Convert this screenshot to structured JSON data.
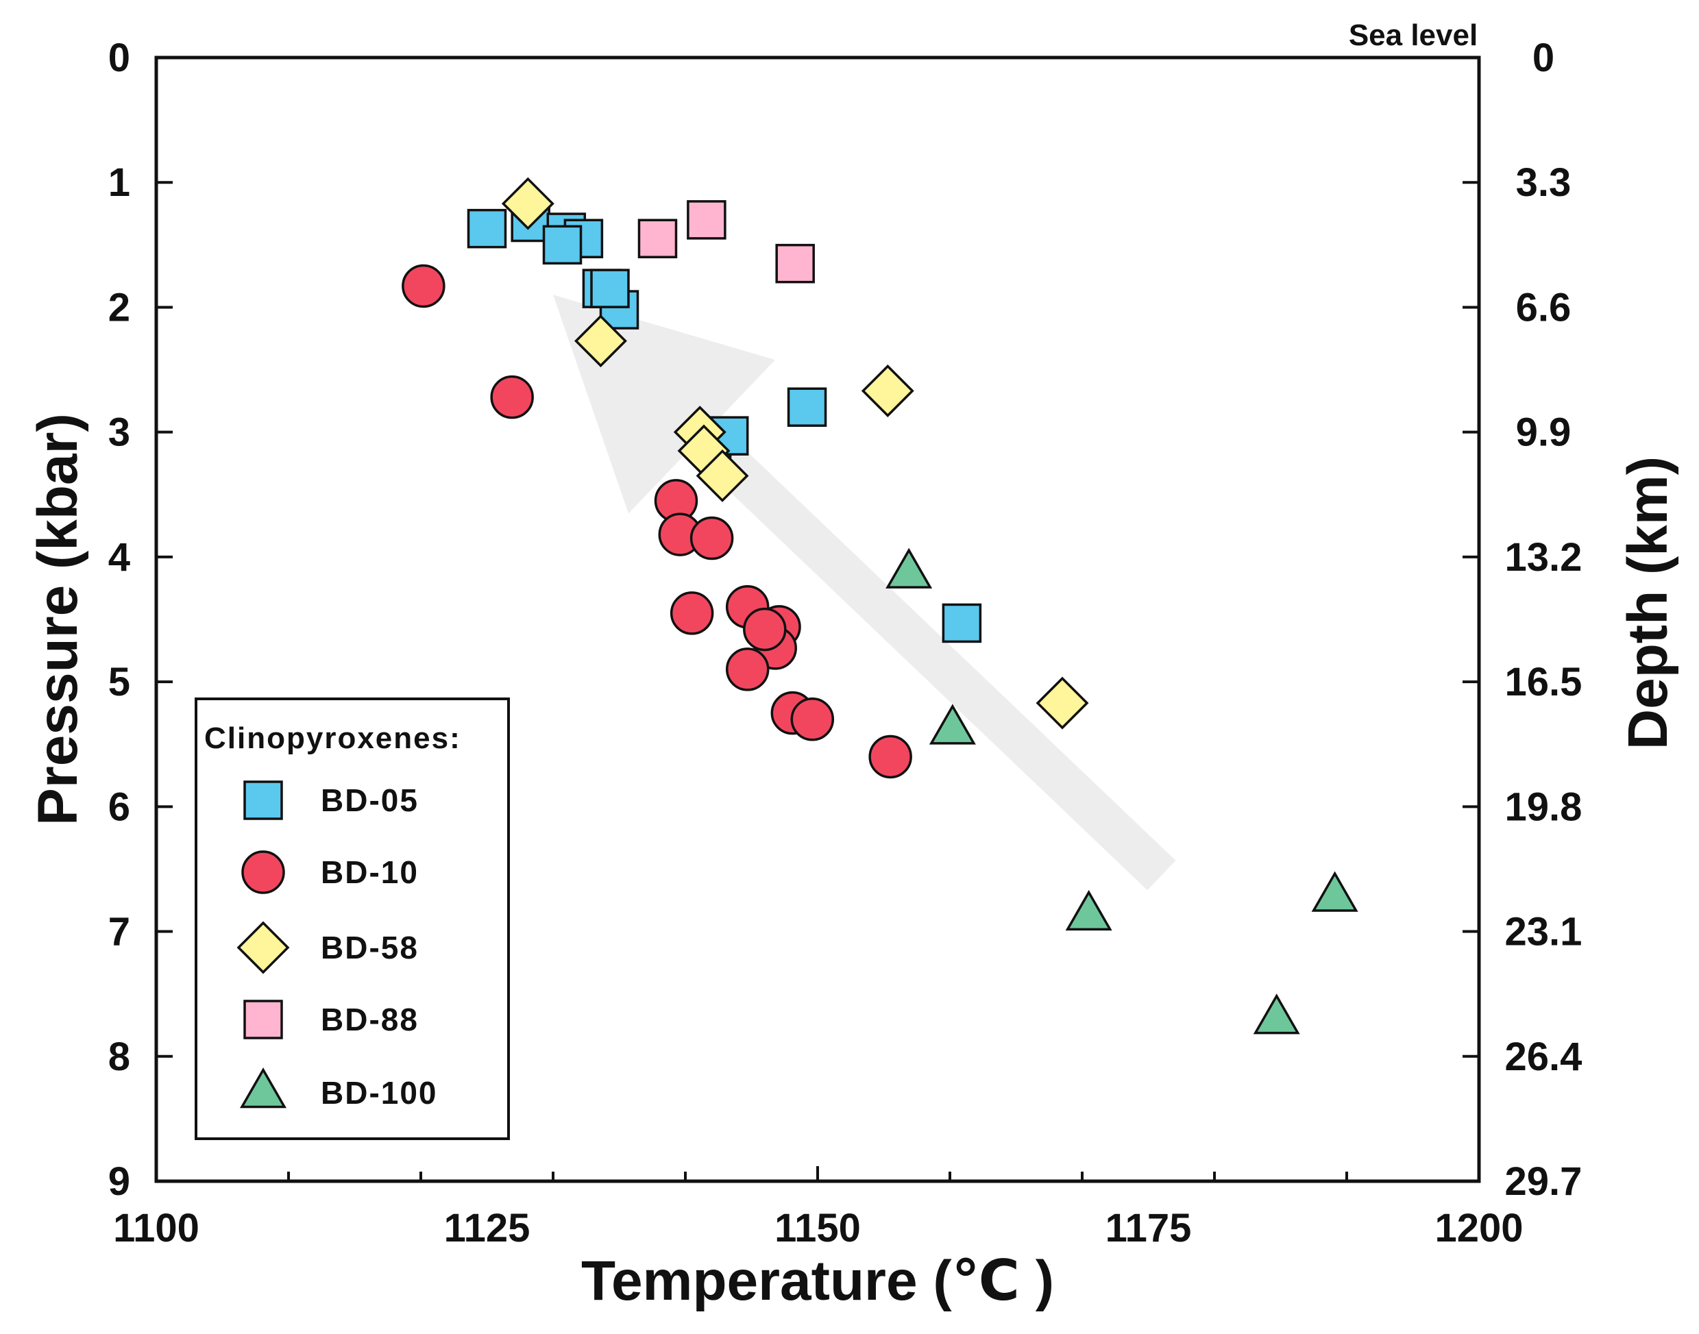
{
  "chart_data": {
    "type": "scatter",
    "xlabel": "Temperature (℃ )",
    "ylabel": "Pressure (kbar)",
    "y2label": "Depth (km)",
    "xlim": [
      1100,
      1200
    ],
    "ylim": [
      0,
      9
    ],
    "x_ticks": [
      "1100",
      "1125",
      "1150",
      "1175",
      "1200"
    ],
    "y_ticks": [
      "0",
      "1",
      "2",
      "3",
      "4",
      "5",
      "6",
      "7",
      "8",
      "9"
    ],
    "y2_ticks": [
      "0",
      "3.3",
      "6.6",
      "9.9",
      "13.2",
      "16.5",
      "19.8",
      "23.1",
      "26.4",
      "29.7"
    ],
    "y2_top_label": "Sea level",
    "legend_title": "Clinopyroxenes:",
    "legend_position": "bottom-left",
    "trend_arrow": {
      "from": [
        1176,
        6.55
      ],
      "to": [
        1130,
        1.9
      ],
      "description": "decreasing pressure and temperature trend"
    },
    "series": [
      {
        "name": "BD-05",
        "marker": "square",
        "color": "#5bc8ee",
        "points": [
          [
            1125,
            1.37
          ],
          [
            1128.3,
            1.32
          ],
          [
            1131,
            1.4
          ],
          [
            1132.3,
            1.45
          ],
          [
            1130.7,
            1.5
          ],
          [
            1133.7,
            1.85
          ],
          [
            1135,
            2.02
          ],
          [
            1134.3,
            1.85
          ],
          [
            1142,
            3.05
          ],
          [
            1143.3,
            3.03
          ],
          [
            1149.2,
            2.8
          ],
          [
            1160.9,
            4.53
          ]
        ]
      },
      {
        "name": "BD-10",
        "marker": "circle",
        "color": "#f2465f",
        "points": [
          [
            1120.2,
            1.83
          ],
          [
            1126.9,
            2.72
          ],
          [
            1139.3,
            3.55
          ],
          [
            1139.6,
            3.82
          ],
          [
            1142,
            3.85
          ],
          [
            1140.5,
            4.45
          ],
          [
            1144.7,
            4.4
          ],
          [
            1147.1,
            4.56
          ],
          [
            1146.8,
            4.73
          ],
          [
            1146,
            4.58
          ],
          [
            1144.7,
            4.9
          ],
          [
            1148.1,
            5.25
          ],
          [
            1149.6,
            5.3
          ],
          [
            1155.5,
            5.6
          ]
        ]
      },
      {
        "name": "BD-58",
        "marker": "diamond",
        "color": "#fff59a",
        "points": [
          [
            1128.1,
            1.17
          ],
          [
            1133.6,
            2.27
          ],
          [
            1141.1,
            3
          ],
          [
            1141.4,
            3.15
          ],
          [
            1142.8,
            3.35
          ],
          [
            1155.3,
            2.67
          ],
          [
            1168.5,
            5.17
          ]
        ]
      },
      {
        "name": "BD-88",
        "marker": "square",
        "color": "#ffb5cf",
        "points": [
          [
            1137.9,
            1.45
          ],
          [
            1141.6,
            1.3
          ],
          [
            1148.3,
            1.65
          ]
        ]
      },
      {
        "name": "BD-100",
        "marker": "triangle",
        "color": "#6ec79b",
        "points": [
          [
            1156.9,
            4.13
          ],
          [
            1160.2,
            5.38
          ],
          [
            1170.5,
            6.87
          ],
          [
            1184.7,
            7.7
          ],
          [
            1189.1,
            6.72
          ]
        ]
      }
    ]
  }
}
